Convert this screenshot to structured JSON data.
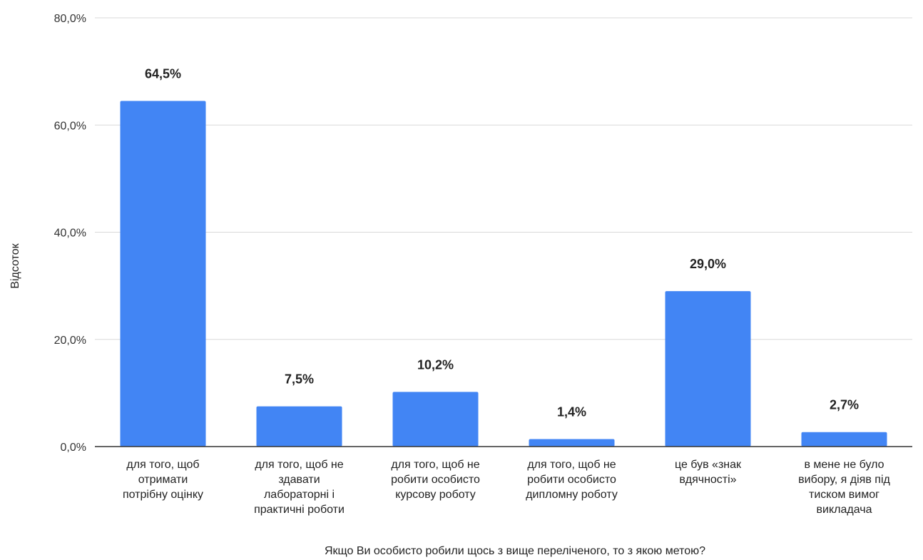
{
  "chart_data": {
    "type": "bar",
    "title": "",
    "xlabel": "Якщо Ви особисто робили щось з вище переліченого, то з якою метою?",
    "ylabel": "Відсоток",
    "ylim": [
      0,
      80
    ],
    "yticks": [
      {
        "value": 0,
        "label": "0,0%"
      },
      {
        "value": 20,
        "label": "20,0%"
      },
      {
        "value": 40,
        "label": "40,0%"
      },
      {
        "value": 60,
        "label": "60,0%"
      },
      {
        "value": 80,
        "label": "80,0%"
      }
    ],
    "grid": true,
    "legend": "none",
    "bar_color": "#4285f4",
    "categories": [
      [
        "для того, щоб",
        "отримати",
        "потрібну оцінку"
      ],
      [
        "для того, щоб не",
        "здавати",
        "лабораторні і",
        "практичні роботи"
      ],
      [
        "для того, щоб не",
        "робити особисто",
        "курсову роботу"
      ],
      [
        "для того, щоб не",
        "робити особисто",
        "дипломну роботу"
      ],
      [
        "це був «знак",
        "вдячності»"
      ],
      [
        "в мене не було",
        "вибору, я діяв під",
        "тиском вимог",
        "викладача"
      ]
    ],
    "values": [
      64.5,
      7.5,
      10.2,
      1.4,
      29.0,
      2.7
    ],
    "data_labels": [
      "64,5%",
      "7,5%",
      "10,2%",
      "1,4%",
      "29,0%",
      "2,7%"
    ]
  }
}
